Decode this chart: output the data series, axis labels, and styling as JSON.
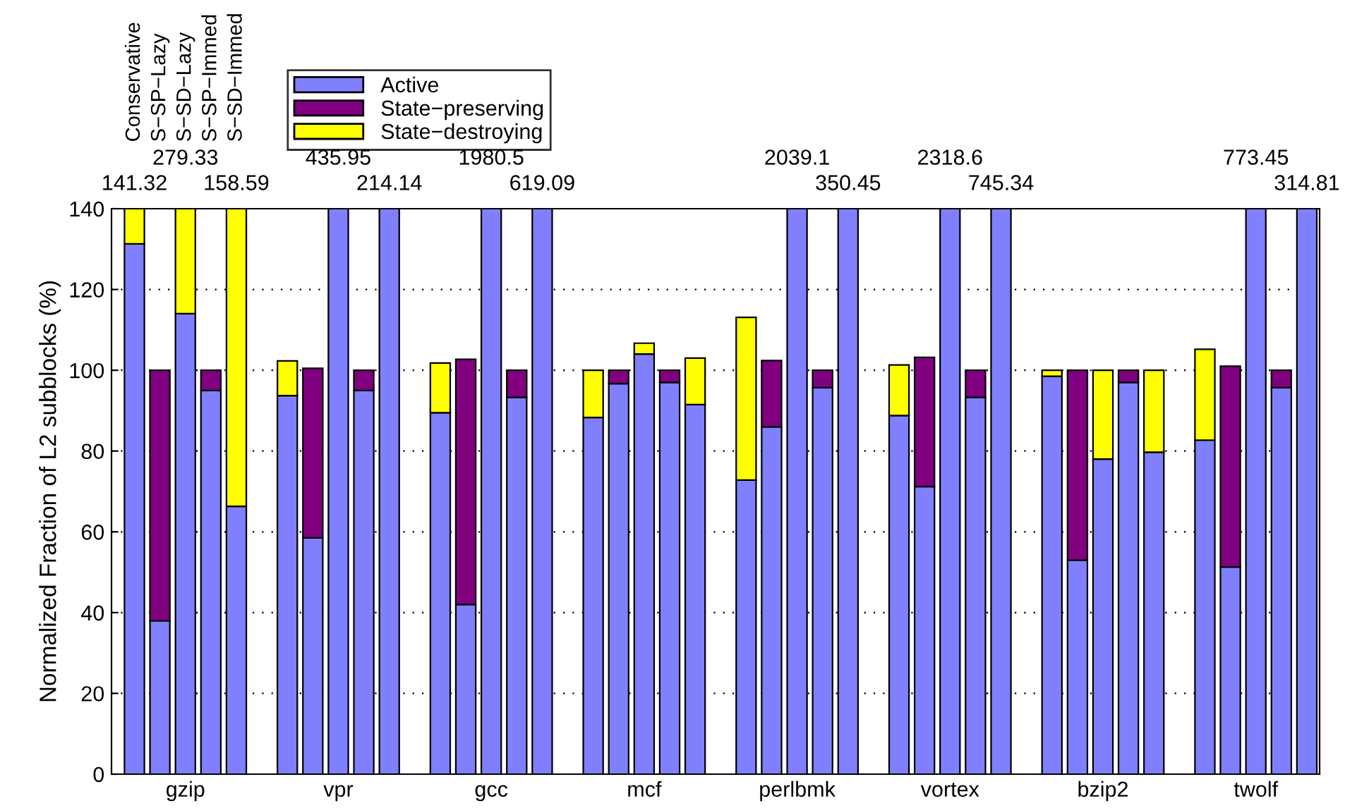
{
  "chart_data": {
    "type": "bar",
    "stacked": true,
    "ylabel": "Normalized Fraction of L2 subblocks (%)",
    "categories": [
      null,
      null,
      "gzip",
      null,
      null,
      null,
      null,
      null,
      "vpr",
      null,
      null,
      null,
      null,
      null,
      "gcc",
      null,
      null,
      null,
      null,
      null,
      "mcf",
      null,
      null,
      null,
      null,
      null,
      "perlbmk",
      null,
      null,
      null,
      null,
      null,
      "vortex",
      null,
      null,
      null,
      null,
      null,
      "bzip2",
      null,
      null,
      null,
      null,
      null,
      "twolf",
      null,
      null
    ],
    "series": [
      {
        "name": "Active",
        "color": "#8080ff",
        "values": [
          131.3,
          38,
          114,
          95,
          66.3,
          null,
          93.7,
          58.5,
          140,
          95,
          140,
          null,
          89.5,
          42,
          140,
          93.3,
          140,
          null,
          88.3,
          96.7,
          104,
          97,
          91.5,
          null,
          72.8,
          86,
          140,
          95.7,
          140,
          null,
          88.8,
          71.2,
          140,
          93.3,
          140,
          null,
          98.5,
          53,
          78,
          97,
          79.7,
          null,
          82.7,
          51.3,
          140,
          95.7,
          140
        ]
      },
      {
        "name": "State−preserving",
        "color": "#800080",
        "values": [
          0,
          62,
          0,
          5,
          0,
          null,
          0,
          42,
          0,
          5,
          0,
          null,
          0,
          60.7,
          0,
          6.7,
          0,
          null,
          0,
          3.3,
          0,
          3,
          0,
          null,
          0,
          16.4,
          0,
          4.3,
          0,
          null,
          0,
          32,
          0,
          6.7,
          0,
          null,
          0,
          47,
          0,
          3,
          0,
          null,
          0,
          49.7,
          0,
          4.3,
          0
        ]
      },
      {
        "name": "State−destroying",
        "color": "#ffff00",
        "values": [
          8.7,
          0,
          26,
          0,
          73.7,
          null,
          8.6,
          0,
          0,
          0,
          0,
          null,
          12.3,
          0,
          0,
          0,
          0,
          null,
          11.7,
          0,
          2.7,
          0,
          11.5,
          null,
          40.3,
          0,
          0,
          0,
          0,
          null,
          12.5,
          0,
          0,
          0,
          0,
          null,
          1.5,
          0,
          22,
          0,
          20.3,
          null,
          22.5,
          0,
          0,
          0,
          0
        ]
      }
    ],
    "annotations": [
      "Conservative",
      "S−SP−Lazy",
      "S−SD−Lazy",
      "S−SP−Immed",
      "S−SD−Immed",
      "141.32",
      "279.33",
      "158.59",
      "435.95",
      "214.14",
      "1980.5",
      "619.09",
      "2039.1",
      "350.45",
      "2318.6",
      "745.34",
      "773.45",
      "314.81"
    ],
    "ylim": [
      0,
      140
    ],
    "yticks": [
      0,
      20,
      40,
      60,
      80,
      100,
      120,
      140
    ],
    "grid": "y",
    "legend": "top left"
  }
}
